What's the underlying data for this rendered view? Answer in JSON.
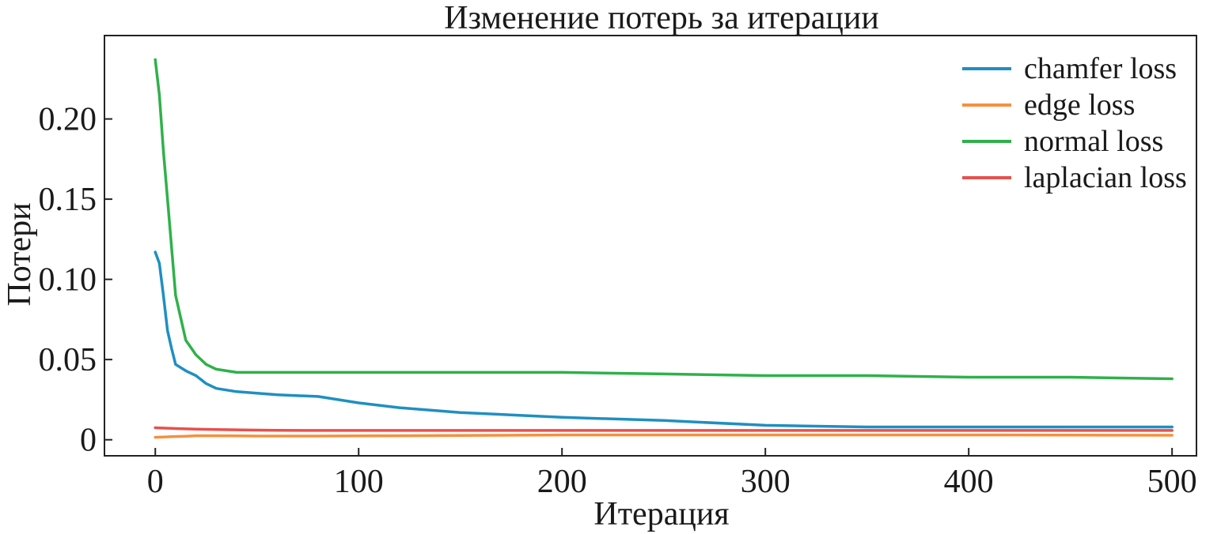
{
  "chart_data": {
    "type": "line",
    "title": "Изменение потерь за итерации",
    "xlabel": "Итерация",
    "ylabel": "Потери",
    "xlim": [
      -25,
      512
    ],
    "ylim": [
      -0.01,
      0.252
    ],
    "xticks": [
      0,
      100,
      200,
      300,
      400,
      500
    ],
    "xtick_labels": [
      "0",
      "100",
      "200",
      "300",
      "400",
      "500"
    ],
    "yticks": [
      0,
      0.05,
      0.1,
      0.15,
      0.2
    ],
    "ytick_labels": [
      "0",
      "0.05",
      "0.10",
      "0.15",
      "0.20"
    ],
    "grid": false,
    "legend_position": "top-right",
    "x": [
      0,
      2,
      4,
      6,
      8,
      10,
      15,
      20,
      25,
      30,
      40,
      50,
      60,
      80,
      100,
      120,
      150,
      200,
      250,
      300,
      350,
      400,
      450,
      500
    ],
    "series": [
      {
        "name": "chamfer loss",
        "color": "#1f8fc1",
        "values": [
          0.117,
          0.11,
          0.09,
          0.068,
          0.057,
          0.047,
          0.043,
          0.04,
          0.035,
          0.032,
          0.03,
          0.029,
          0.028,
          0.027,
          0.023,
          0.02,
          0.017,
          0.014,
          0.012,
          0.009,
          0.008,
          0.008,
          0.008,
          0.008
        ]
      },
      {
        "name": "edge loss",
        "color": "#f5913e",
        "values": [
          0.0015,
          0.0016,
          0.0017,
          0.0018,
          0.0019,
          0.002,
          0.0022,
          0.0025,
          0.0025,
          0.0025,
          0.0024,
          0.0023,
          0.0023,
          0.0023,
          0.0024,
          0.0025,
          0.0027,
          0.003,
          0.003,
          0.003,
          0.003,
          0.003,
          0.0029,
          0.0028
        ]
      },
      {
        "name": "normal loss",
        "color": "#2fb14a",
        "values": [
          0.237,
          0.215,
          0.18,
          0.15,
          0.12,
          0.09,
          0.062,
          0.053,
          0.047,
          0.044,
          0.042,
          0.042,
          0.042,
          0.042,
          0.042,
          0.042,
          0.042,
          0.042,
          0.041,
          0.04,
          0.04,
          0.039,
          0.039,
          0.038
        ]
      },
      {
        "name": "laplacian loss",
        "color": "#e8504c",
        "values": [
          0.0075,
          0.0074,
          0.0073,
          0.0072,
          0.0071,
          0.007,
          0.0068,
          0.0066,
          0.0065,
          0.0064,
          0.0062,
          0.006,
          0.0059,
          0.0058,
          0.0058,
          0.0058,
          0.0058,
          0.0058,
          0.0058,
          0.0058,
          0.0058,
          0.0058,
          0.0058,
          0.0058
        ]
      }
    ]
  }
}
